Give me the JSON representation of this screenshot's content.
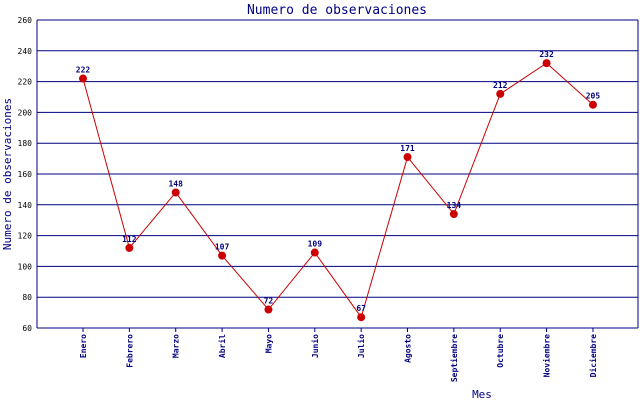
{
  "chart_data": {
    "type": "line",
    "title": "Numero de observaciones",
    "xlabel": "Mes",
    "ylabel": "Numero de observaciones",
    "categories": [
      "Enero",
      "Febrero",
      "Marzo",
      "Abril",
      "Mayo",
      "Junio",
      "Julio",
      "Agosto",
      "Septiembre",
      "Octubre",
      "Noviembre",
      "Diciembre"
    ],
    "series": [
      {
        "values": [
          222,
          112,
          148,
          107,
          72,
          109,
          67,
          171,
          134,
          212,
          232,
          205
        ],
        "line_color": "#cc0000",
        "marker_color": "#cc0000"
      }
    ],
    "ylim": [
      60,
      260
    ],
    "yticks": [
      60,
      80,
      100,
      120,
      140,
      160,
      180,
      200,
      220,
      240,
      260
    ],
    "grid": "horizontal",
    "colors": {
      "grid": "#000080",
      "axis": "#000080",
      "title": "#000080",
      "labels": "#000080"
    }
  }
}
